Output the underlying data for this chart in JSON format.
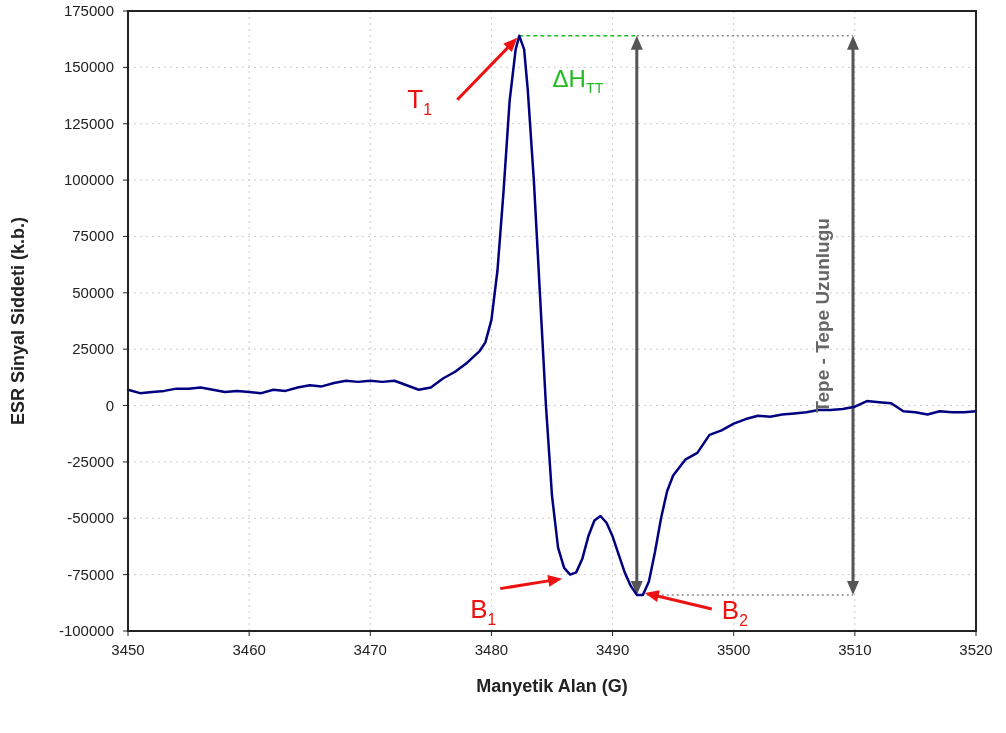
{
  "chart_data": {
    "type": "line",
    "xlabel": "Manyetik Alan (G)",
    "ylabel": "ESR Sinyal Siddeti (k.b.)",
    "xlim": [
      3450,
      3520
    ],
    "xticks": [
      3450,
      3460,
      3470,
      3480,
      3490,
      3500,
      3510,
      3520
    ],
    "ylim": [
      -100000,
      175000
    ],
    "yticks": [
      -100000,
      -75000,
      -50000,
      -25000,
      0,
      25000,
      50000,
      75000,
      100000,
      125000,
      150000,
      175000
    ],
    "grid": true,
    "ref_lines": [
      {
        "axis": "y",
        "value": 164000,
        "color": "#888888",
        "line_style": "dotted"
      },
      {
        "axis": "y",
        "value": -84000,
        "color": "#888888",
        "line_style": "dotted"
      }
    ],
    "marker": "none",
    "line_style": "solid",
    "series": [
      {
        "color": "#000080",
        "x": [
          3450,
          3451,
          3452,
          3453,
          3454,
          3455,
          3456,
          3457,
          3458,
          3459,
          3460,
          3461,
          3462,
          3463,
          3464,
          3465,
          3466,
          3467,
          3468,
          3469,
          3470,
          3471,
          3472,
          3473,
          3474,
          3475,
          3476,
          3477,
          3478,
          3479,
          3479.5,
          3480,
          3480.5,
          3481,
          3481.5,
          3482,
          3482.3,
          3482.7,
          3483,
          3483.5,
          3484,
          3484.5,
          3485,
          3485.5,
          3486,
          3486.5,
          3487,
          3487.5,
          3488,
          3488.5,
          3489,
          3489.5,
          3490,
          3490.5,
          3491,
          3491.5,
          3492,
          3492.5,
          3493,
          3493.5,
          3494,
          3494.5,
          3495,
          3496,
          3497,
          3498,
          3499,
          3500,
          3501,
          3502,
          3503,
          3504,
          3505,
          3506,
          3507,
          3508,
          3509,
          3510,
          3511,
          3512,
          3513,
          3514,
          3515,
          3516,
          3517,
          3518,
          3519,
          3520
        ],
        "values": [
          7000,
          5500,
          6000,
          6500,
          7500,
          7500,
          8000,
          7000,
          6000,
          6500,
          6000,
          5500,
          7000,
          6500,
          8000,
          9000,
          8500,
          10000,
          11000,
          10500,
          11000,
          10500,
          11000,
          9000,
          7000,
          8000,
          12000,
          15000,
          19000,
          24000,
          28000,
          38000,
          60000,
          95000,
          135000,
          158000,
          164000,
          158000,
          140000,
          100000,
          50000,
          0,
          -40000,
          -63000,
          -72000,
          -75000,
          -74000,
          -68000,
          -58000,
          -51000,
          -49000,
          -52000,
          -58000,
          -66000,
          -74000,
          -80000,
          -84000,
          -84000,
          -78000,
          -65000,
          -50000,
          -38000,
          -31000,
          -24000,
          -21000,
          -13000,
          -11000,
          -8000,
          -6000,
          -4500,
          -5000,
          -4000,
          -3500,
          -3000,
          -2000,
          -2000,
          -1500,
          -500,
          2000,
          1500,
          1000,
          -2500,
          -3000,
          -4000,
          -2500,
          -3000,
          -3000,
          -2500
        ]
      }
    ],
    "annotations": [
      "T$_{1}$",
      {
        "text": "B$_{1}$",
        "x": 3486.5,
        "y": -75000
      },
      "B$_{2}$",
      "ΔH$_{TT}$",
      "Tepe - Tepe Uzunlugu"
    ]
  }
}
